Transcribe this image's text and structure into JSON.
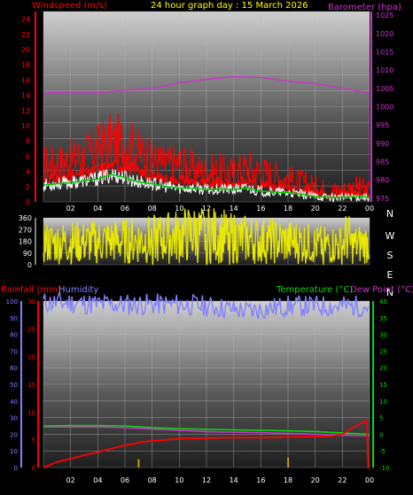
{
  "header": {
    "title": "24 hour graph day : 15 March 2026",
    "left_label": "Windspeed (m/s)",
    "right_label": "Barometer (hpa)"
  },
  "lower_header": {
    "rainfall_label": "Rainfall (mm)",
    "humidity_label": "Humidity",
    "temperature_label": "Temperature (°C)",
    "dewpoint_label": "Dew Point (°C)"
  },
  "colors": {
    "windspeed": "#ff0000",
    "gust": "#ff0000",
    "avg_wind": "#00cc00",
    "wind_low": "#ffffff",
    "barometer": "#cc33cc",
    "wind_dir": "#e8e800",
    "rainfall": "#ff0000",
    "humidity": "#8080ff",
    "temperature": "#00dd00",
    "dewpoint": "#cc33cc",
    "rain_rate": "#ccaa00"
  },
  "chart_data": [
    {
      "type": "line",
      "x_ticks": [
        "02",
        "04",
        "06",
        "08",
        "10",
        "12",
        "14",
        "16",
        "18",
        "20",
        "22",
        "00"
      ],
      "y_left_ticks": [
        "0",
        "2",
        "4",
        "6",
        "8",
        "10",
        "12",
        "14",
        "16",
        "18",
        "20",
        "22",
        "24"
      ],
      "y_right_ticks": [
        "975",
        "980",
        "985",
        "990",
        "995",
        "1000",
        "1005",
        "1010",
        "1015",
        "1020",
        "1025"
      ],
      "ylim_left": [
        0,
        25
      ],
      "ylim_right": [
        974,
        1026
      ],
      "grid": true,
      "series": [
        {
          "name": "Windspeed (m/s)",
          "axis": "left",
          "x": [
            0,
            1,
            2,
            3,
            4,
            5,
            6,
            7,
            8,
            9,
            10,
            11,
            12,
            13,
            14,
            15,
            16,
            17,
            18,
            19,
            20,
            21,
            22,
            23,
            24
          ],
          "values": [
            5,
            5,
            5.5,
            6,
            7,
            8,
            8,
            6.5,
            5.5,
            5,
            5,
            4.5,
            4,
            4,
            4,
            4.5,
            4,
            3.5,
            3,
            2.5,
            2,
            1.5,
            1.5,
            2,
            1.5
          ]
        },
        {
          "name": "Windspeed (m/s)",
          "axis": "left",
          "x": [
            0,
            1,
            2,
            3,
            4,
            5,
            6,
            7,
            8,
            9,
            10,
            11,
            12,
            13,
            14,
            15,
            16,
            17,
            18,
            19,
            20,
            21,
            22,
            23,
            24
          ],
          "values": [
            2.2,
            2.4,
            2.5,
            2.8,
            3,
            3.6,
            3.2,
            2.6,
            2.4,
            2,
            1.8,
            1.8,
            1.6,
            1.7,
            1.6,
            1.8,
            1.4,
            1.3,
            1.2,
            1,
            0.7,
            0.6,
            0.6,
            0.7,
            0.6
          ]
        },
        {
          "name": "Barometer (hpa)",
          "axis": "right",
          "x": [
            0,
            2,
            4,
            6,
            8,
            10,
            12,
            14,
            16,
            18,
            20,
            22,
            24
          ],
          "values": [
            1004,
            1003.8,
            1003.8,
            1004.5,
            1005,
            1006.5,
            1007.5,
            1008.2,
            1008,
            1007,
            1006.3,
            1005,
            1003.8
          ]
        }
      ]
    },
    {
      "type": "line",
      "x_ticks": [
        "02",
        "04",
        "06",
        "08",
        "10",
        "12",
        "14",
        "16",
        "18",
        "20",
        "22",
        "00"
      ],
      "y_ticks": [
        "0",
        "90",
        "180",
        "270",
        "360"
      ],
      "direction_labels": [
        "N",
        "W",
        "S",
        "E",
        "N"
      ],
      "ylim": [
        0,
        360
      ],
      "grid": true,
      "series": [
        {
          "name": "Wind direction",
          "x": [
            0,
            1,
            2,
            3,
            4,
            5,
            6,
            7,
            8,
            9,
            10,
            11,
            12,
            13,
            14,
            15,
            16,
            17,
            18,
            19,
            20,
            21,
            22,
            22.4,
            22.6,
            23,
            24
          ],
          "values": [
            165,
            162,
            166,
            168,
            172,
            178,
            175,
            182,
            190,
            200,
            215,
            228,
            225,
            215,
            200,
            190,
            180,
            178,
            172,
            168,
            150,
            150,
            150,
            225,
            150,
            150,
            165
          ]
        }
      ]
    },
    {
      "type": "line",
      "x_ticks": [
        "02",
        "04",
        "06",
        "08",
        "10",
        "12",
        "14",
        "16",
        "18",
        "20",
        "22",
        "00"
      ],
      "y_humidity_ticks": [
        "0",
        "10",
        "20",
        "30",
        "40",
        "50",
        "60",
        "70",
        "80",
        "90",
        "100"
      ],
      "y_rain_ticks": [
        "0",
        "5",
        "10",
        "15",
        "20",
        "25",
        "30"
      ],
      "y_temp_ticks": [
        "-10",
        "-5",
        "0",
        "5",
        "10",
        "15",
        "20",
        "25",
        "30",
        "35",
        "40"
      ],
      "ylim_humidity": [
        0,
        100
      ],
      "ylim_rain": [
        0,
        30
      ],
      "ylim_temp": [
        -10,
        40
      ],
      "grid": true,
      "series": [
        {
          "name": "Humidity",
          "axis": "humidity",
          "x": [
            0,
            2,
            4,
            6,
            8,
            10,
            12,
            14,
            15,
            16,
            18,
            20,
            22,
            24
          ],
          "values": [
            99,
            99,
            98,
            98,
            98,
            98,
            97,
            95,
            94,
            95,
            97,
            97,
            97,
            97
          ]
        },
        {
          "name": "Rainfall (mm)",
          "axis": "rain",
          "x": [
            0,
            0.5,
            1,
            2,
            3,
            4,
            5,
            6,
            6.5,
            7,
            8,
            9,
            10,
            12,
            14,
            16,
            18,
            20,
            21,
            22,
            23,
            23.8,
            23.9,
            24
          ],
          "values": [
            0,
            0.5,
            1,
            1.6,
            2.2,
            2.8,
            3.4,
            4,
            4.2,
            4.5,
            4.8,
            5,
            5.2,
            5.3,
            5.4,
            5.4,
            5.5,
            5.6,
            5.6,
            6,
            7.5,
            8.5,
            0,
            0
          ]
        },
        {
          "name": "Temperature (°C)",
          "axis": "temp",
          "x": [
            0,
            2,
            4,
            6,
            8,
            10,
            12,
            14,
            16,
            18,
            20,
            22,
            24
          ],
          "values": [
            2.5,
            2.6,
            2.6,
            2.5,
            2,
            1.7,
            1.5,
            1.3,
            1.2,
            1,
            0.8,
            0.4,
            0
          ]
        },
        {
          "name": "Dew Point (°C)",
          "axis": "temp",
          "x": [
            0,
            2,
            4,
            6,
            8,
            10,
            12,
            14,
            16,
            18,
            20,
            22,
            24
          ],
          "values": [
            2.2,
            2.2,
            2.2,
            2,
            1.6,
            1.2,
            0.8,
            0.6,
            0.5,
            0.2,
            0,
            -0.3,
            -0.5
          ]
        },
        {
          "name": "Rain rate",
          "axis": "rain",
          "type": "bar",
          "x": [
            7,
            18
          ],
          "values": [
            1.5,
            1.8
          ]
        }
      ]
    }
  ]
}
